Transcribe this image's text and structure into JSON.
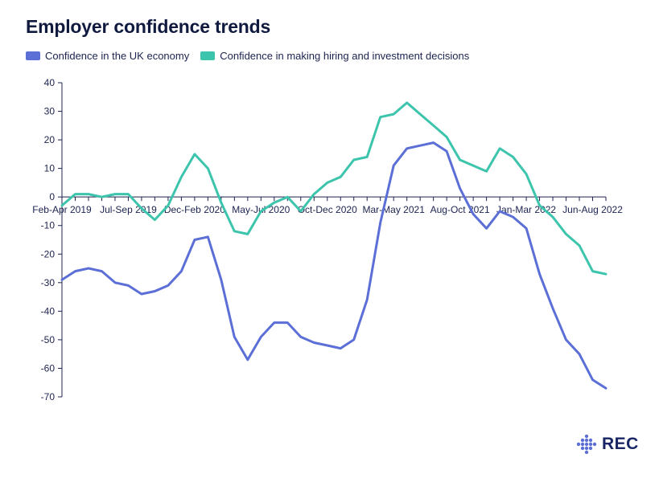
{
  "colors": {
    "series_uk": "#5b6fd6",
    "series_hiring": "#3cc4ac",
    "axis": "#1c2350",
    "logo_dots": "#5b6fd6"
  },
  "logo": {
    "text": "REC"
  },
  "chart_data": {
    "type": "line",
    "title": "Employer confidence trends",
    "xlabel": "",
    "ylabel": "",
    "ylim": [
      -70,
      40
    ],
    "yticks": [
      40,
      30,
      20,
      10,
      0,
      -10,
      -20,
      -30,
      -40,
      -50,
      -60,
      -70
    ],
    "grid": false,
    "legend_position": "top-left",
    "x_labels": [
      {
        "index": 0,
        "label": "Feb-Apr 2019"
      },
      {
        "index": 5,
        "label": "Jul-Sep 2019"
      },
      {
        "index": 10,
        "label": "Dec-Feb 2020"
      },
      {
        "index": 15,
        "label": "May-Jul 2020"
      },
      {
        "index": 20,
        "label": "Oct-Dec 2020"
      },
      {
        "index": 25,
        "label": "Mar-May 2021"
      },
      {
        "index": 30,
        "label": "Aug-Oct 2021"
      },
      {
        "index": 35,
        "label": "Jan-Mar 2022"
      },
      {
        "index": 40,
        "label": "Jun-Aug 2022"
      }
    ],
    "series": [
      {
        "name": "Confidence in the UK economy",
        "values": [
          -29,
          -26,
          -25,
          -26,
          -30,
          -31,
          -34,
          -33,
          -31,
          -26,
          -15,
          -14,
          -29,
          -49,
          -57,
          -49,
          -44,
          -44,
          -49,
          -51,
          -52,
          -53,
          -50,
          -36,
          -9,
          11,
          17,
          18,
          19,
          16,
          3,
          -6,
          -11,
          -5,
          -7,
          -11,
          -27,
          -39,
          -50,
          -55,
          -64,
          -67
        ]
      },
      {
        "name": "Confidence in making hiring and investment decisions",
        "values": [
          -3,
          1,
          1,
          0,
          1,
          1,
          -4,
          -8,
          -3,
          7,
          15,
          10,
          -2,
          -12,
          -13,
          -5,
          -2,
          0,
          -5,
          1,
          5,
          7,
          13,
          14,
          28,
          29,
          33,
          29,
          25,
          21,
          13,
          11,
          9,
          17,
          14,
          8,
          -3,
          -7,
          -13,
          -17,
          -26,
          -27
        ]
      }
    ]
  }
}
